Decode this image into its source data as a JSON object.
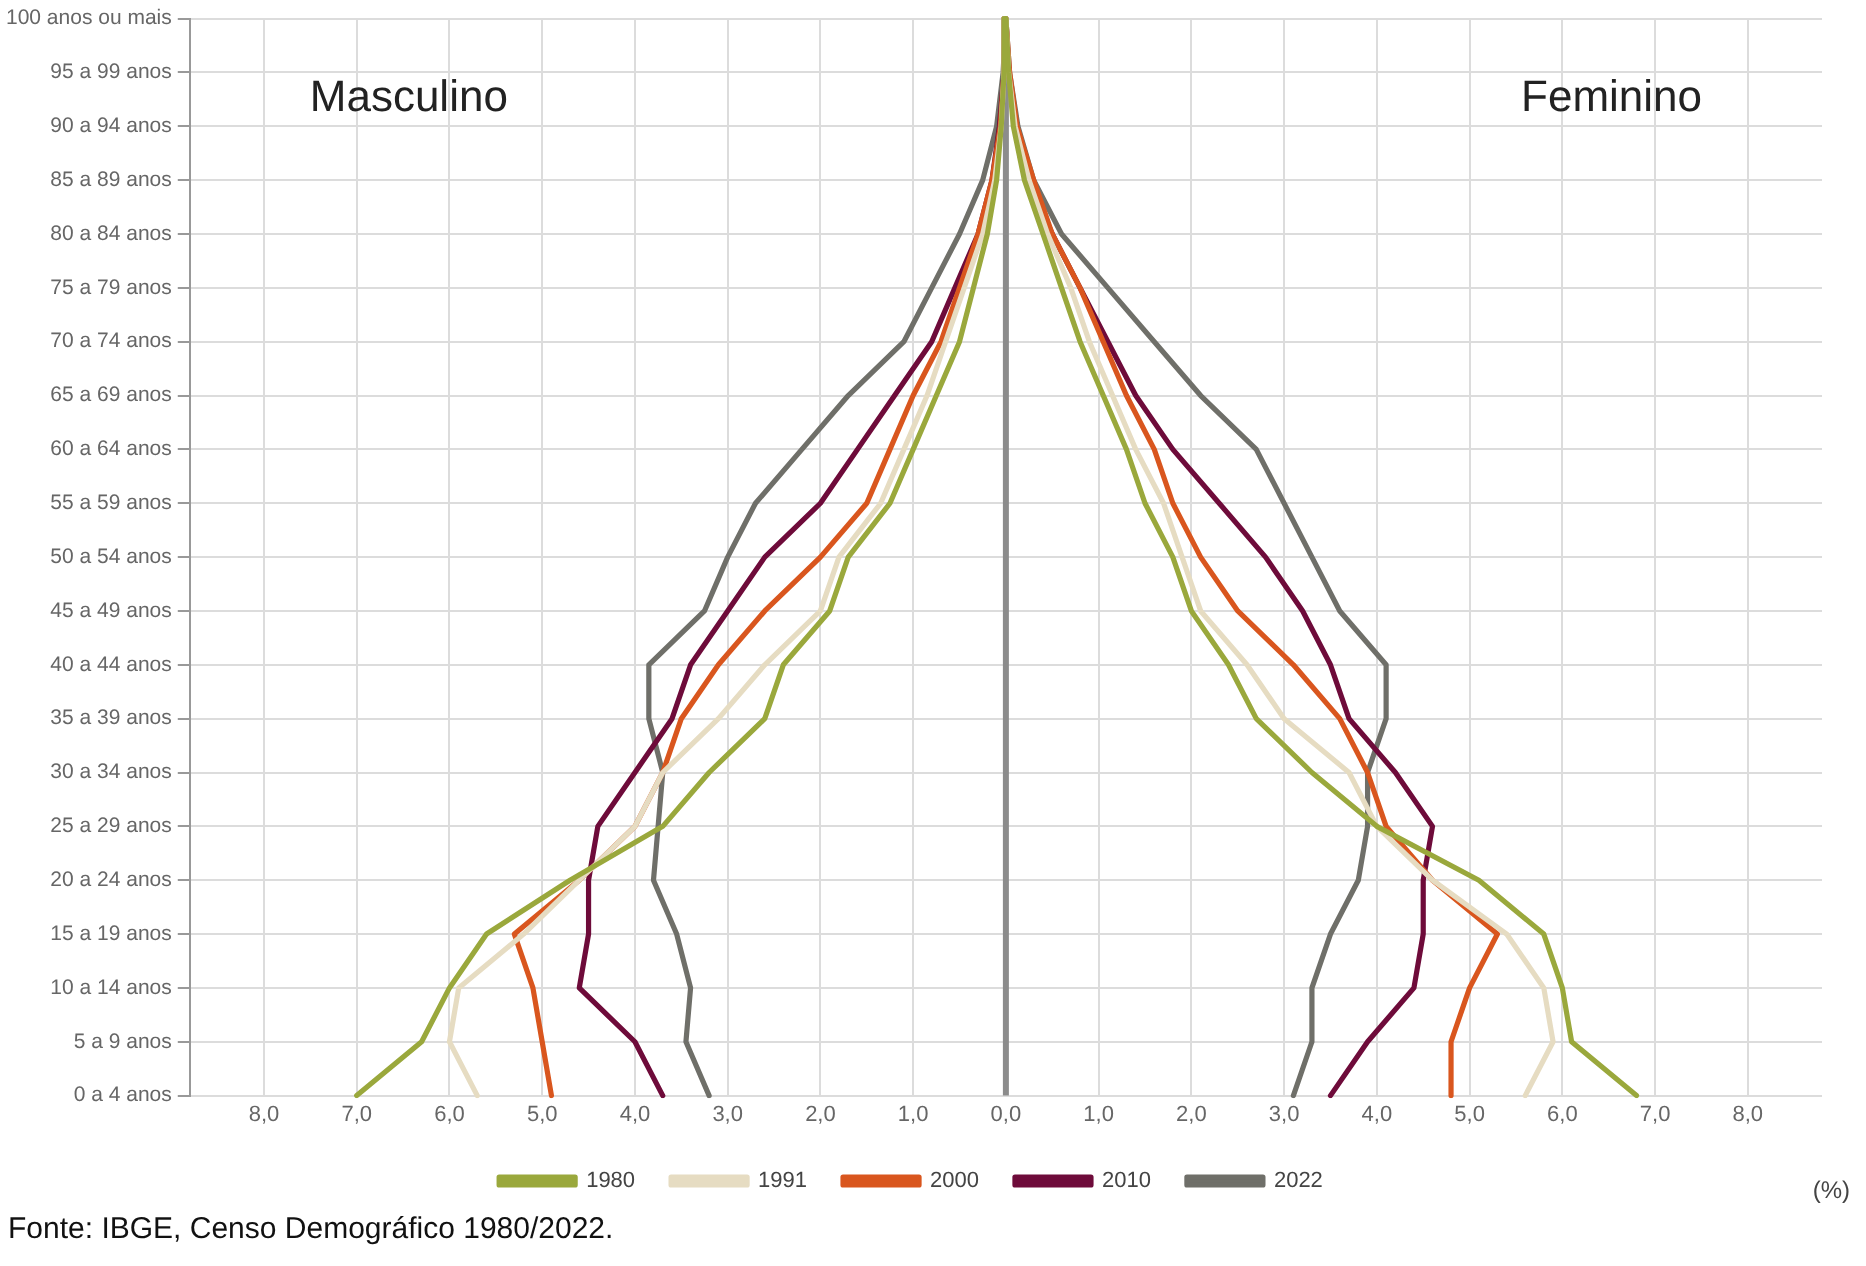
{
  "chart_data": {
    "type": "line",
    "orientation": "horizontal",
    "categories": [
      "100 anos ou mais",
      "95 a 99 anos",
      "90 a 94 anos",
      "85 a 89 anos",
      "80 a 84 anos",
      "75 a 79 anos",
      "70 a 74 anos",
      "65 a 69 anos",
      "60 a 64 anos",
      "55 a 59 anos",
      "50 a 54 anos",
      "45 a 49 anos",
      "40 a 44 anos",
      "35 a 39 anos",
      "30 a 34 anos",
      "25 a 29 anos",
      "20 a 24 anos",
      "15 a 19 anos",
      "10 a 14 anos",
      "5 a 9 anos",
      "0 a 4 anos"
    ],
    "series": [
      {
        "name": "1980",
        "color": "#9aa83c",
        "values": [
          0,
          -0.02,
          -0.05,
          -0.1,
          -0.2,
          -0.35,
          -0.5,
          -0.75,
          -1.0,
          -1.25,
          -1.7,
          -1.9,
          -2.4,
          -2.6,
          -3.2,
          -3.7,
          -4.7,
          -5.6,
          -6.0,
          -6.3,
          -7.0
        ]
      },
      {
        "color": "#9aa83c",
        "values": [
          0,
          0.03,
          0.08,
          0.2,
          0.4,
          0.6,
          0.8,
          1.05,
          1.3,
          1.5,
          1.8,
          2.0,
          2.4,
          2.7,
          3.3,
          4.0,
          5.1,
          5.8,
          6.0,
          6.1,
          6.8
        ]
      },
      {
        "name": "1991",
        "color": "#e6dcc2",
        "values": [
          0,
          -0.02,
          -0.05,
          -0.12,
          -0.25,
          -0.45,
          -0.65,
          -0.85,
          -1.1,
          -1.35,
          -1.8,
          -2.0,
          -2.6,
          -3.1,
          -3.7,
          -4.0,
          -4.6,
          -5.2,
          -5.9,
          -6.0,
          -5.7
        ]
      },
      {
        "color": "#e6dcc2",
        "values": [
          0,
          0.03,
          0.1,
          0.25,
          0.45,
          0.7,
          0.9,
          1.15,
          1.4,
          1.7,
          1.9,
          2.1,
          2.6,
          3.0,
          3.7,
          4.0,
          4.6,
          5.4,
          5.8,
          5.9,
          5.6
        ]
      },
      {
        "name": "2000",
        "color": "#d9561e",
        "values": [
          0,
          -0.02,
          -0.06,
          -0.15,
          -0.3,
          -0.5,
          -0.7,
          -1.0,
          -1.25,
          -1.5,
          -2.0,
          -2.6,
          -3.1,
          -3.5,
          -3.7,
          -4.0,
          -4.6,
          -5.3,
          -5.1,
          -5.0,
          -4.9
        ]
      },
      {
        "color": "#d9561e",
        "values": [
          0,
          0.04,
          0.12,
          0.3,
          0.5,
          0.8,
          1.05,
          1.3,
          1.6,
          1.8,
          2.1,
          2.5,
          3.1,
          3.6,
          3.9,
          4.1,
          4.6,
          5.3,
          5.0,
          4.8,
          4.8
        ]
      },
      {
        "name": "2010",
        "color": "#6e0b3a",
        "values": [
          0,
          -0.02,
          -0.07,
          -0.15,
          -0.3,
          -0.55,
          -0.8,
          -1.2,
          -1.6,
          -2.0,
          -2.6,
          -3.0,
          -3.4,
          -3.6,
          -4.0,
          -4.4,
          -4.5,
          -4.5,
          -4.6,
          -4.0,
          -3.7
        ]
      },
      {
        "color": "#6e0b3a",
        "values": [
          0,
          0.03,
          0.1,
          0.25,
          0.5,
          0.8,
          1.1,
          1.4,
          1.8,
          2.3,
          2.8,
          3.2,
          3.5,
          3.7,
          4.2,
          4.6,
          4.5,
          4.5,
          4.4,
          3.9,
          3.5
        ]
      },
      {
        "name": "2022",
        "color": "#6f6f69",
        "values": [
          0,
          -0.03,
          -0.1,
          -0.25,
          -0.5,
          -0.8,
          -1.1,
          -1.7,
          -2.2,
          -2.7,
          -3.0,
          -3.25,
          -3.85,
          -3.85,
          -3.7,
          -3.75,
          -3.8,
          -3.55,
          -3.4,
          -3.45,
          -3.2
        ]
      },
      {
        "color": "#6f6f69",
        "values": [
          0,
          0.04,
          0.13,
          0.3,
          0.6,
          1.1,
          1.6,
          2.1,
          2.7,
          3.0,
          3.3,
          3.6,
          4.1,
          4.1,
          3.9,
          3.9,
          3.8,
          3.5,
          3.3,
          3.3,
          3.1
        ]
      }
    ],
    "xlim": [
      -8.8,
      8.8
    ],
    "xticks": [
      {
        "value": -8,
        "label": "8,0"
      },
      {
        "value": -7,
        "label": "7,0"
      },
      {
        "value": -6,
        "label": "6,0"
      },
      {
        "value": -5,
        "label": "5,0"
      },
      {
        "value": -4,
        "label": "4,0"
      },
      {
        "value": -3,
        "label": "3,0"
      },
      {
        "value": -2,
        "label": "2,0"
      },
      {
        "value": -1,
        "label": "1,0"
      },
      {
        "value": 0,
        "label": "0,0"
      },
      {
        "value": 1,
        "label": "1,0"
      },
      {
        "value": 2,
        "label": "2,0"
      },
      {
        "value": 3,
        "label": "3,0"
      },
      {
        "value": 4,
        "label": "4,0"
      },
      {
        "value": 5,
        "label": "5,0"
      },
      {
        "value": 6,
        "label": "6,0"
      },
      {
        "value": 7,
        "label": "7,0"
      },
      {
        "value": 8,
        "label": "8,0"
      }
    ],
    "xlabel": "(%)",
    "ref_lines": [
      {
        "axis": "x",
        "value": 0,
        "color": "#8c8c8c"
      }
    ],
    "annotations": [
      "Masculino",
      "Feminino",
      "Fonte: IBGE, Censo Demográfico 1980/2022."
    ],
    "grid": true,
    "legend": "bottom",
    "marker": "none",
    "line_style": "solid"
  }
}
